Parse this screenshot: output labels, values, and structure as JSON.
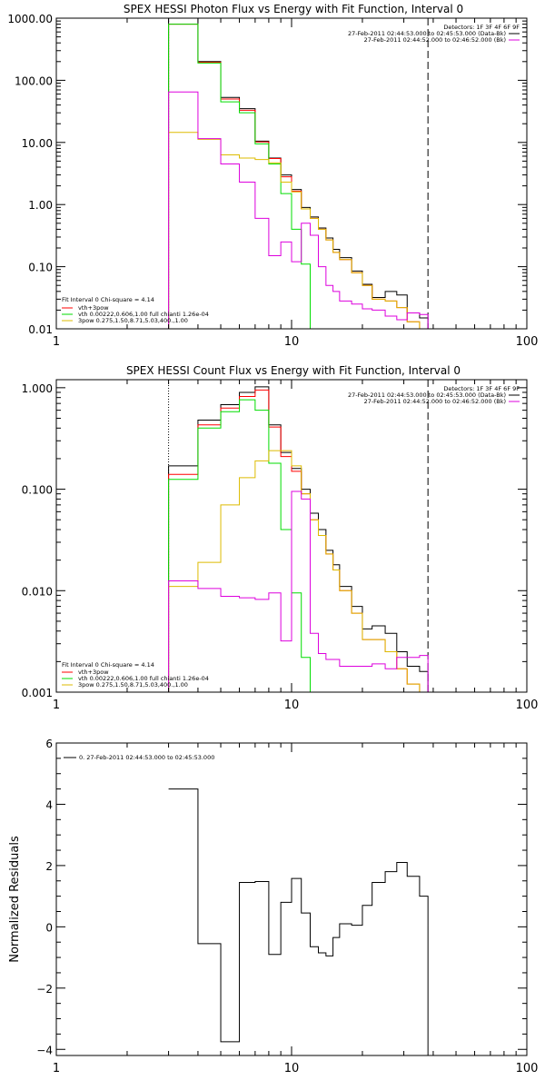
{
  "chart_data": [
    {
      "type": "line",
      "title": "SPEX HESSI Photon Flux vs Energy with Fit Function, Interval 0",
      "xscale": "log",
      "yscale": "log",
      "xlim": [
        1,
        100
      ],
      "ylim": [
        0.01,
        1000
      ],
      "x_ticks": [
        "1",
        "10",
        "100"
      ],
      "y_ticks": [
        "0.01",
        "0.10",
        "1.00",
        "10.00",
        "100.00",
        "1000.00"
      ],
      "x_ticks_val": [
        1,
        10,
        100
      ],
      "y_ticks_val": [
        0.01,
        0.1,
        1,
        10,
        100,
        1000
      ],
      "vlines": [
        {
          "x": 3,
          "style": "dotted",
          "color": "#000000"
        },
        {
          "x": 38,
          "style": "dashed",
          "color": "#000000"
        }
      ],
      "edges": [
        3,
        4,
        5,
        6,
        7,
        8,
        9,
        10,
        11,
        12,
        13,
        14,
        15,
        16,
        18,
        20,
        22,
        25,
        28,
        31,
        35,
        38
      ],
      "series": [
        {
          "name": "Detectors: 1F 3F 4F 6F 9F",
          "color": "#000000",
          "values": [
            1000,
            200,
            53,
            35,
            10.5,
            5.6,
            3.0,
            1.75,
            0.9,
            0.63,
            0.42,
            0.29,
            0.19,
            0.14,
            0.085,
            0.052,
            0.032,
            0.04,
            0.035,
            0.018,
            0.015
          ]
        },
        {
          "name": "vth+3pow",
          "color": "#ff0000",
          "values": [
            800,
            195,
            50,
            33,
            10.2,
            5.5,
            2.8,
            1.65,
            0.85,
            0.6,
            0.4,
            0.27,
            0.17,
            0.13,
            0.08,
            0.05,
            0.03,
            0.028,
            0.022,
            0.013,
            0.01
          ]
        },
        {
          "name": "vth 0.00222,0.606,1.00 full chianti 1.26e-04",
          "color": "#00dd00",
          "values": [
            800,
            190,
            45,
            30,
            9.5,
            4.5,
            1.5,
            0.4,
            0.11,
            0.009
          ]
        },
        {
          "name": "3pow 0.275,1.50,8.71,5.03,400.,1.00",
          "color": "#ddbb00",
          "values": [
            14.5,
            11.2,
            6.3,
            5.6,
            5.3,
            4.7,
            2.3,
            1.6,
            0.85,
            0.6,
            0.4,
            0.27,
            0.17,
            0.13,
            0.08,
            0.05,
            0.03,
            0.028,
            0.022,
            0.013,
            0.01
          ]
        },
        {
          "name": "27-Feb-2011 02:44:52.000 to 02:46:52.000 (Bk)",
          "color": "#dd00dd",
          "values": [
            65,
            11.5,
            4.5,
            2.3,
            0.6,
            0.15,
            0.25,
            0.12,
            0.5,
            0.32,
            0.1,
            0.05,
            0.04,
            0.028,
            0.025,
            0.021,
            0.02,
            0.016,
            0.014,
            0.018,
            0.017
          ]
        }
      ],
      "series_name_positions": "legend-top-right",
      "legend_top_right": {
        "line1": "Detectors: 1F 3F 4F 6F 9F",
        "line2": "27-Feb-2011 02:44:53.000 to 02:45:53.000 (Data-Bk)",
        "line3": "27-Feb-2011 02:44:52.000 to 02:46:52.000 (Bk)"
      },
      "legend_bottom_left": {
        "header": "Fit Interval 0   Chi-square = 4.14",
        "items": [
          "vth+3pow",
          "vth 0.00222,0.606,1.00  full chianti 1.26e-04",
          "3pow 0.275,1.50,8.71,5.03,400.,1.00"
        ],
        "colors": [
          "#ff0000",
          "#00dd00",
          "#ddbb00"
        ]
      }
    },
    {
      "type": "line",
      "title": "SPEX HESSI Count Flux vs Energy with Fit Function, Interval 0",
      "xscale": "log",
      "yscale": "log",
      "xlim": [
        1,
        100
      ],
      "ylim": [
        0.001,
        1.2
      ],
      "x_ticks": [
        "1",
        "10",
        "100"
      ],
      "y_ticks": [
        "0.001",
        "0.010",
        "0.100",
        "1.000"
      ],
      "x_ticks_val": [
        1,
        10,
        100
      ],
      "y_ticks_val": [
        0.001,
        0.01,
        0.1,
        1
      ],
      "vlines": [
        {
          "x": 3,
          "style": "dotted",
          "color": "#000000"
        },
        {
          "x": 38,
          "style": "dashed",
          "color": "#000000"
        }
      ],
      "edges": [
        3,
        4,
        5,
        6,
        7,
        8,
        9,
        10,
        11,
        12,
        13,
        14,
        15,
        16,
        18,
        20,
        22,
        25,
        28,
        31,
        35,
        38
      ],
      "series": [
        {
          "color": "#000000",
          "values": [
            0.17,
            0.48,
            0.68,
            0.9,
            1.02,
            0.43,
            0.23,
            0.16,
            0.1,
            0.058,
            0.04,
            0.025,
            0.018,
            0.011,
            0.007,
            0.0042,
            0.0045,
            0.0038,
            0.0025,
            0.0018,
            0.0016
          ]
        },
        {
          "color": "#ff0000",
          "values": [
            0.14,
            0.43,
            0.63,
            0.82,
            0.95,
            0.41,
            0.21,
            0.15,
            0.09,
            0.05,
            0.035,
            0.023,
            0.016,
            0.01,
            0.006,
            0.0033,
            0.0033,
            0.0025,
            0.0017,
            0.0012,
            0.0009
          ]
        },
        {
          "color": "#00dd00",
          "values": [
            0.125,
            0.4,
            0.58,
            0.76,
            0.6,
            0.18,
            0.04,
            0.0095,
            0.0022,
            0.0005
          ]
        },
        {
          "color": "#ddbb00",
          "values": [
            0.011,
            0.019,
            0.07,
            0.13,
            0.19,
            0.24,
            0.24,
            0.17,
            0.09,
            0.05,
            0.035,
            0.023,
            0.016,
            0.01,
            0.006,
            0.0033,
            0.0033,
            0.0025,
            0.0017,
            0.0012,
            0.0009
          ]
        },
        {
          "color": "#dd00dd",
          "values": [
            0.0125,
            0.0105,
            0.0088,
            0.0085,
            0.0082,
            0.0095,
            0.0032,
            0.095,
            0.08,
            0.0038,
            0.0024,
            0.0021,
            0.0021,
            0.0018,
            0.0018,
            0.0018,
            0.0019,
            0.0017,
            0.0022,
            0.0022,
            0.0023
          ]
        }
      ],
      "legend_top_right": {
        "line1": "Detectors: 1F 3F 4F 6F 9F",
        "line2": "27-Feb-2011 02:44:53.000 to 02:45:53.000 (Data-Bk)",
        "line3": "27-Feb-2011 02:44:52.000 to 02:46:52.000 (Bk)"
      },
      "legend_bottom_left": {
        "header": "Fit Interval 0   Chi-square = 4.14",
        "items": [
          "vth+3pow",
          "vth 0.00222,0.606,1.00  full chianti 1.26e-04",
          "3pow 0.275,1.50,8.71,5.03,400.,1.00"
        ],
        "colors": [
          "#ff0000",
          "#00dd00",
          "#ddbb00"
        ]
      }
    },
    {
      "type": "line",
      "title": "",
      "xscale": "log",
      "yscale": "linear",
      "xlim": [
        1,
        100
      ],
      "ylim": [
        -4.2,
        6
      ],
      "x_ticks": [
        "1",
        "10",
        "100"
      ],
      "y_ticks": [
        "−4",
        "−2",
        "0",
        "2",
        "4",
        "6"
      ],
      "x_ticks_val": [
        1,
        10,
        100
      ],
      "y_ticks_val": [
        -4,
        -2,
        0,
        2,
        4,
        6
      ],
      "ylabel": "Normalized Residuals",
      "edges": [
        3,
        4,
        5,
        6,
        7,
        8,
        9,
        10,
        11,
        12,
        13,
        14,
        15,
        16,
        18,
        20,
        22,
        25,
        28,
        31,
        35,
        38
      ],
      "series": [
        {
          "name": "0. 27-Feb-2011 02:44:53.000 to 02:45:53.000",
          "color": "#000000",
          "values": [
            4.5,
            -0.55,
            -3.75,
            1.45,
            1.48,
            -0.9,
            0.8,
            1.58,
            0.45,
            -0.65,
            -0.85,
            -0.95,
            -0.35,
            0.1,
            0.05,
            0.7,
            1.45,
            1.8,
            2.1,
            1.65,
            1.0
          ]
        }
      ]
    }
  ]
}
